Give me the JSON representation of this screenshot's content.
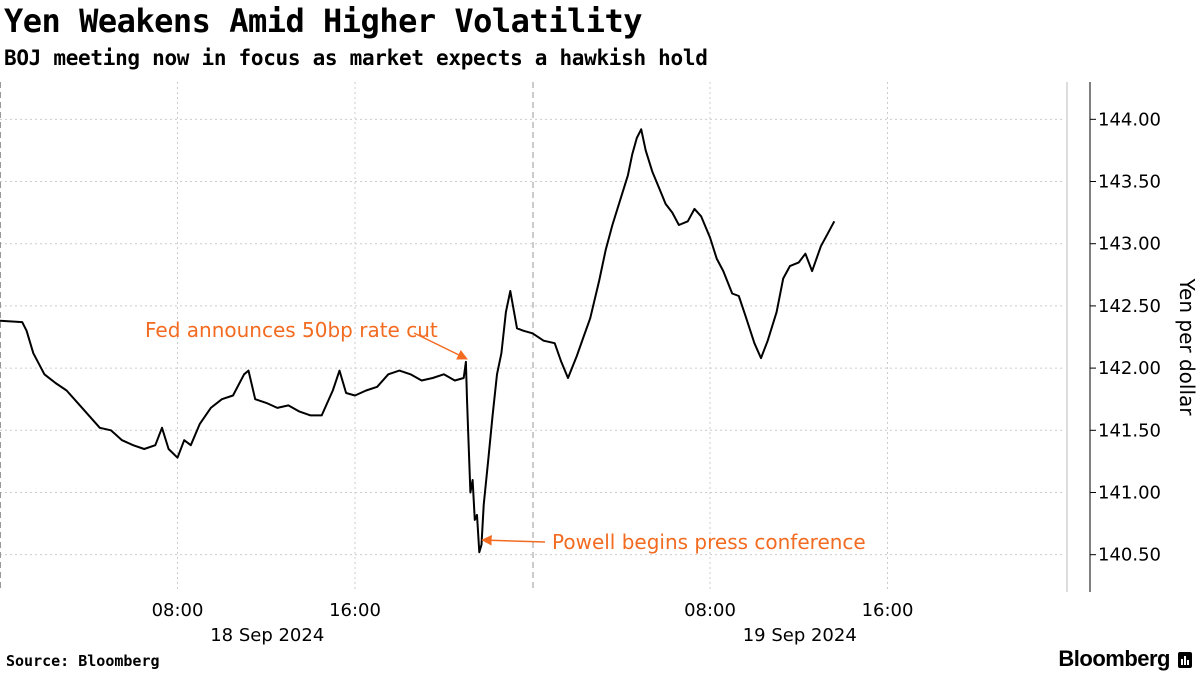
{
  "header": {
    "title": "Yen Weakens Amid Higher Volatility",
    "subtitle": "BOJ meeting now in focus as market expects a hawkish hold"
  },
  "footer": {
    "source": "Source: Bloomberg",
    "brand": "Bloomberg"
  },
  "colors": {
    "line": "#000000",
    "annotation": "#f26b21",
    "grid": "#cccccc",
    "axis": "#000000"
  },
  "chart_data": {
    "type": "line",
    "title": "Yen Weakens Amid Higher Volatility",
    "subtitle": "BOJ meeting now in focus as market expects a hawkish hold",
    "ylabel": "Yen per dollar",
    "y_axis_side": "right",
    "ylim": [
      140.2,
      144.3
    ],
    "yticks": [
      140.5,
      141.0,
      141.5,
      142.0,
      142.5,
      143.0,
      143.5,
      144.0
    ],
    "ytick_labels": [
      "140.50",
      "141.00",
      "141.50",
      "142.00",
      "142.50",
      "143.00",
      "143.50",
      "144.00"
    ],
    "x_unit": "hours from 18 Sep 2024 00:00",
    "xlim": [
      0,
      48
    ],
    "xticks": [
      8,
      16,
      32,
      40
    ],
    "xtick_labels": [
      "08:00",
      "16:00",
      "08:00",
      "16:00"
    ],
    "x_group_labels": [
      {
        "at": 12,
        "label": "18 Sep 2024"
      },
      {
        "at": 36,
        "label": "19 Sep 2024"
      }
    ],
    "day_dividers": [
      0,
      24
    ],
    "grid": true,
    "series": [
      {
        "values": [
          [
            0,
            142.38
          ],
          [
            1.0,
            142.37
          ],
          [
            1.2,
            142.3
          ],
          [
            1.5,
            142.12
          ],
          [
            2.0,
            141.95
          ],
          [
            2.5,
            141.88
          ],
          [
            3.0,
            141.82
          ],
          [
            3.5,
            141.72
          ],
          [
            4.0,
            141.62
          ],
          [
            4.5,
            141.52
          ],
          [
            5.0,
            141.5
          ],
          [
            5.5,
            141.42
          ],
          [
            6.0,
            141.38
          ],
          [
            6.5,
            141.35
          ],
          [
            7.0,
            141.38
          ],
          [
            7.3,
            141.52
          ],
          [
            7.6,
            141.35
          ],
          [
            8.0,
            141.28
          ],
          [
            8.3,
            141.42
          ],
          [
            8.6,
            141.38
          ],
          [
            9.0,
            141.55
          ],
          [
            9.5,
            141.68
          ],
          [
            10.0,
            141.75
          ],
          [
            10.5,
            141.78
          ],
          [
            11.0,
            141.95
          ],
          [
            11.2,
            141.98
          ],
          [
            11.5,
            141.75
          ],
          [
            12.0,
            141.72
          ],
          [
            12.5,
            141.68
          ],
          [
            13.0,
            141.7
          ],
          [
            13.5,
            141.65
          ],
          [
            14.0,
            141.62
          ],
          [
            14.5,
            141.62
          ],
          [
            15.0,
            141.82
          ],
          [
            15.3,
            141.98
          ],
          [
            15.6,
            141.8
          ],
          [
            16.0,
            141.78
          ],
          [
            16.5,
            141.82
          ],
          [
            17.0,
            141.85
          ],
          [
            17.5,
            141.95
          ],
          [
            18.0,
            141.98
          ],
          [
            18.5,
            141.95
          ],
          [
            19.0,
            141.9
          ],
          [
            19.5,
            141.92
          ],
          [
            20.0,
            141.95
          ],
          [
            20.5,
            141.9
          ],
          [
            20.9,
            141.92
          ],
          [
            21.0,
            142.05
          ],
          [
            21.05,
            141.75
          ],
          [
            21.1,
            141.48
          ],
          [
            21.2,
            141.0
          ],
          [
            21.3,
            141.1
          ],
          [
            21.4,
            140.78
          ],
          [
            21.5,
            140.82
          ],
          [
            21.6,
            140.52
          ],
          [
            21.7,
            140.58
          ],
          [
            21.8,
            140.9
          ],
          [
            22.0,
            141.25
          ],
          [
            22.2,
            141.62
          ],
          [
            22.4,
            141.95
          ],
          [
            22.6,
            142.12
          ],
          [
            22.8,
            142.45
          ],
          [
            23.0,
            142.62
          ],
          [
            23.3,
            142.32
          ],
          [
            23.6,
            142.3
          ],
          [
            24.0,
            142.28
          ],
          [
            24.5,
            142.22
          ],
          [
            25.0,
            142.2
          ],
          [
            25.3,
            142.05
          ],
          [
            25.6,
            141.92
          ],
          [
            26.0,
            142.1
          ],
          [
            26.3,
            142.25
          ],
          [
            26.6,
            142.4
          ],
          [
            27.0,
            142.7
          ],
          [
            27.3,
            142.95
          ],
          [
            27.6,
            143.15
          ],
          [
            28.0,
            143.38
          ],
          [
            28.3,
            143.55
          ],
          [
            28.5,
            143.72
          ],
          [
            28.7,
            143.85
          ],
          [
            28.9,
            143.92
          ],
          [
            29.1,
            143.75
          ],
          [
            29.4,
            143.58
          ],
          [
            29.7,
            143.45
          ],
          [
            30.0,
            143.32
          ],
          [
            30.3,
            143.25
          ],
          [
            30.6,
            143.15
          ],
          [
            31.0,
            143.18
          ],
          [
            31.3,
            143.28
          ],
          [
            31.6,
            143.22
          ],
          [
            32.0,
            143.05
          ],
          [
            32.3,
            142.88
          ],
          [
            32.6,
            142.78
          ],
          [
            33.0,
            142.6
          ],
          [
            33.3,
            142.58
          ],
          [
            33.6,
            142.42
          ],
          [
            34.0,
            142.2
          ],
          [
            34.3,
            142.08
          ],
          [
            34.6,
            142.22
          ],
          [
            35.0,
            142.45
          ],
          [
            35.3,
            142.72
          ],
          [
            35.6,
            142.82
          ],
          [
            36.0,
            142.85
          ],
          [
            36.3,
            142.92
          ],
          [
            36.6,
            142.78
          ],
          [
            37.0,
            142.98
          ],
          [
            37.3,
            143.08
          ],
          [
            37.6,
            143.18
          ]
        ]
      }
    ],
    "annotations": [
      {
        "text": "Fed announces 50bp rate cut",
        "point": [
          21.0,
          142.05
        ]
      },
      {
        "text": "Powell begins press conference",
        "point": [
          21.6,
          140.52
        ]
      }
    ]
  }
}
